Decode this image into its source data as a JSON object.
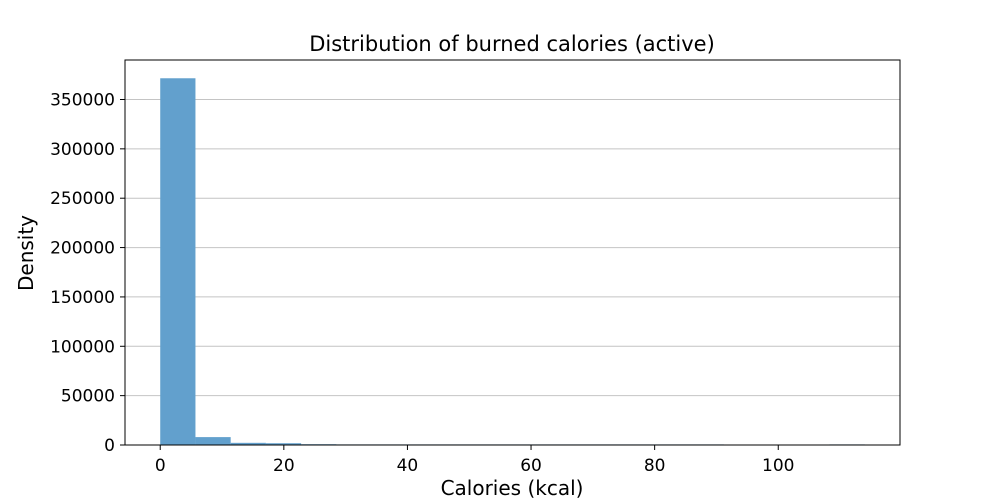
{
  "chart_data": {
    "type": "bar",
    "title": "Distribution of burned calories (active)",
    "xlabel": "Calories (kcal)",
    "ylabel": "Density",
    "xlim": [
      -5.7,
      119.7
    ],
    "ylim": [
      0,
      390000
    ],
    "x_ticks": [
      0,
      20,
      40,
      60,
      80,
      100
    ],
    "y_ticks": [
      0,
      50000,
      100000,
      150000,
      200000,
      250000,
      300000,
      350000
    ],
    "grid": "y-major",
    "legend": "none",
    "bar_color": "#62a0cd",
    "bin_edges": [
      0,
      5.7,
      11.4,
      17.1,
      22.8,
      28.5,
      34.2,
      39.9,
      45.6,
      51.3,
      57.0,
      62.7,
      68.4,
      74.1,
      79.8,
      85.5,
      91.2,
      96.9,
      102.6,
      108.3,
      114.0
    ],
    "values": [
      371500,
      8000,
      2200,
      1800,
      800,
      300,
      100,
      50,
      20,
      10,
      5,
      3,
      2,
      1,
      1,
      1,
      0,
      0,
      0,
      1
    ]
  }
}
